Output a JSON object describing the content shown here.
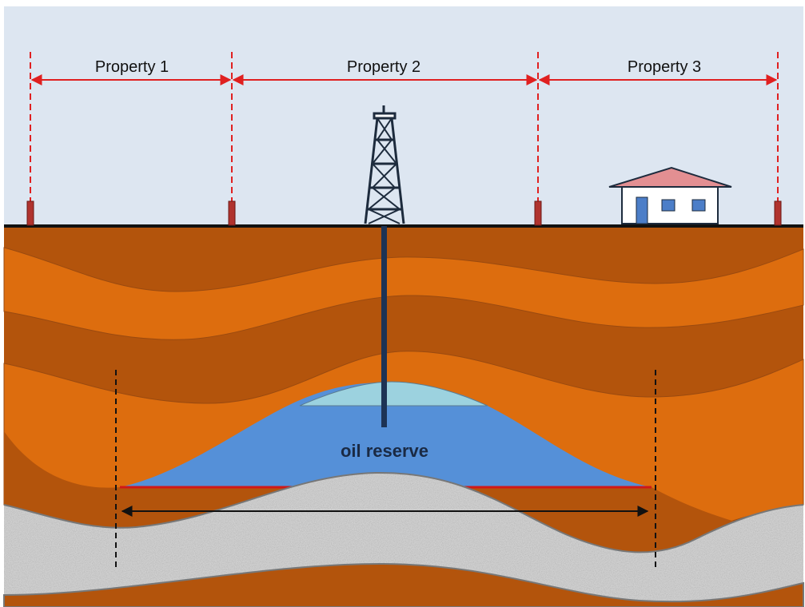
{
  "properties": [
    {
      "label": "Property 1"
    },
    {
      "label": "Property 2"
    },
    {
      "label": "Property 3"
    }
  ],
  "annotation": "oil reserve"
}
